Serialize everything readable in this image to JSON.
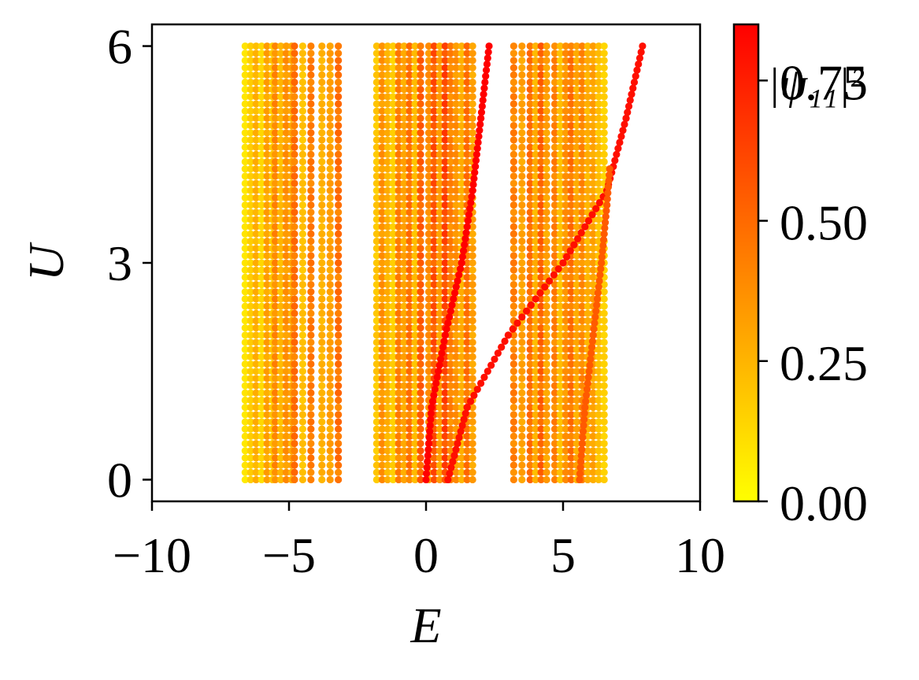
{
  "chart_data": {
    "type": "scatter",
    "xlabel": "E",
    "ylabel": "U",
    "xlim": [
      -10,
      10
    ],
    "ylim": [
      -0.3,
      6.3
    ],
    "xticks": [
      -10,
      -5,
      0,
      5,
      10
    ],
    "xtick_labels": [
      "−10",
      "−5",
      "0",
      "5",
      "10"
    ],
    "yticks": [
      0,
      3,
      6
    ],
    "ytick_labels": [
      "0",
      "3",
      "6"
    ],
    "colorbar": {
      "label": "|ψ₁₁|²",
      "range": [
        0.0,
        0.85
      ],
      "ticks": [
        0.0,
        0.25,
        0.5,
        0.75
      ],
      "tick_labels": [
        "0.00",
        "0.25",
        "0.50",
        "0.75"
      ],
      "colormap": "autumn_r",
      "low_color": "#ffff00",
      "high_color": "#ff0000"
    },
    "series": [
      {
        "E": -6.6,
        "w": 0.08
      },
      {
        "E": -6.4,
        "w": 0.15
      },
      {
        "E": -6.2,
        "w": 0.25
      },
      {
        "E": -6.0,
        "w": 0.12
      },
      {
        "E": -5.8,
        "w": 0.3
      },
      {
        "E": -5.6,
        "w": 0.18
      },
      {
        "E": -5.5,
        "w": 0.38
      },
      {
        "E": -5.3,
        "w": 0.22
      },
      {
        "E": -5.1,
        "w": 0.35
      },
      {
        "E": -4.9,
        "w": 0.28
      },
      {
        "E": -4.8,
        "w": 0.45
      },
      {
        "E": -4.5,
        "w": 0.2
      },
      {
        "E": -4.2,
        "w": 0.42
      },
      {
        "E": -3.8,
        "w": 0.25
      },
      {
        "E": -3.5,
        "w": 0.3
      },
      {
        "E": -3.2,
        "w": 0.45
      },
      {
        "E": -1.8,
        "w": 0.18
      },
      {
        "E": -1.6,
        "w": 0.35
      },
      {
        "E": -1.4,
        "w": 0.25
      },
      {
        "E": -1.2,
        "w": 0.15
      },
      {
        "E": -1.0,
        "w": 0.4
      },
      {
        "E": -0.8,
        "w": 0.28
      },
      {
        "E": -0.6,
        "w": 0.45
      },
      {
        "E": -0.4,
        "w": 0.2
      },
      {
        "E": -0.2,
        "w": 0.5
      },
      {
        "E": 0.1,
        "w": 0.35
      },
      {
        "E": 0.3,
        "w": 0.55
      },
      {
        "E": 0.5,
        "w": 0.3
      },
      {
        "E": 0.7,
        "w": 0.6
      },
      {
        "E": 0.9,
        "w": 0.4
      },
      {
        "E": 1.1,
        "w": 0.35
      },
      {
        "E": 1.3,
        "w": 0.25
      },
      {
        "E": 1.5,
        "w": 0.45
      },
      {
        "E": 1.7,
        "w": 0.3
      },
      {
        "E": 3.2,
        "w": 0.4
      },
      {
        "E": 3.5,
        "w": 0.3
      },
      {
        "E": 3.8,
        "w": 0.45
      },
      {
        "E": 4.0,
        "w": 0.25
      },
      {
        "E": 4.2,
        "w": 0.5
      },
      {
        "E": 4.4,
        "w": 0.3
      },
      {
        "E": 4.7,
        "w": 0.4
      },
      {
        "E": 4.9,
        "w": 0.2
      },
      {
        "E": 5.1,
        "w": 0.35
      },
      {
        "E": 5.3,
        "w": 0.45
      },
      {
        "E": 5.5,
        "w": 0.28
      },
      {
        "E": 5.7,
        "w": 0.38
      },
      {
        "E": 5.9,
        "w": 0.25
      },
      {
        "E": 6.1,
        "w": 0.3
      },
      {
        "E": 6.3,
        "w": 0.2
      },
      {
        "E": 6.5,
        "w": 0.15
      }
    ],
    "dispersive_series": [
      {
        "points": [
          [
            0.0,
            0
          ],
          [
            0.2,
            1
          ],
          [
            0.7,
            2
          ],
          [
            1.3,
            3
          ],
          [
            1.7,
            4
          ],
          [
            2.0,
            5
          ],
          [
            2.3,
            6
          ]
        ],
        "w": 0.85
      },
      {
        "points": [
          [
            0.8,
            0
          ],
          [
            1.5,
            1
          ],
          [
            3.0,
            2
          ],
          [
            5.0,
            3
          ],
          [
            6.6,
            4
          ],
          [
            7.3,
            5
          ],
          [
            7.9,
            6
          ]
        ],
        "w": 0.8
      },
      {
        "points": [
          [
            5.6,
            0
          ],
          [
            5.8,
            1
          ],
          [
            6.1,
            2
          ],
          [
            6.4,
            3
          ],
          [
            6.6,
            3.8
          ],
          [
            6.7,
            4.3
          ]
        ],
        "w": 0.55
      }
    ]
  }
}
